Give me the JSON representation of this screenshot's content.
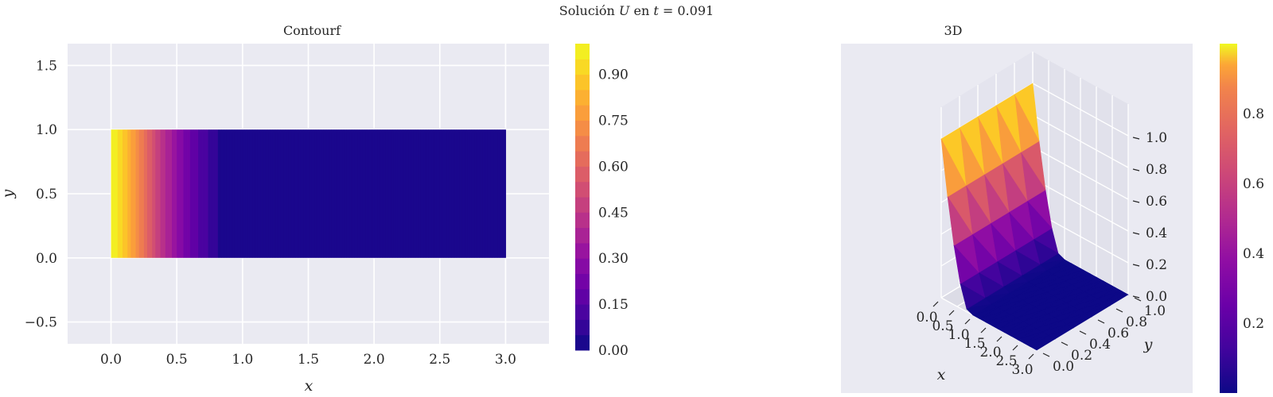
{
  "figure": {
    "suptitle": "Solución U en t =  0.091",
    "suptitle_parts": {
      "prefix": "Solución ",
      "var": "U",
      "mid": " en ",
      "tvar": "t",
      "eq": " =  0.091"
    }
  },
  "chart_data": [
    {
      "type": "heatmap",
      "subtype": "contourf",
      "title": "Contourf",
      "xlabel": "x",
      "ylabel": "y",
      "xlim": [
        -0.33,
        3.33
      ],
      "ylim": [
        -0.67,
        1.67
      ],
      "xticks": [
        0.0,
        0.5,
        1.0,
        1.5,
        2.0,
        2.5,
        3.0
      ],
      "xtick_labels": [
        "0.0",
        "0.5",
        "1.0",
        "1.5",
        "2.0",
        "2.5",
        "3.0"
      ],
      "yticks": [
        -0.5,
        0.0,
        0.5,
        1.0,
        1.5
      ],
      "ytick_labels": [
        "−0.5",
        "0.0",
        "0.5",
        "1.0",
        "1.5"
      ],
      "domain": {
        "x": [
          0.0,
          3.0
        ],
        "y": [
          0.0,
          1.0
        ]
      },
      "colormap": "plasma",
      "grid": true,
      "field_profile": {
        "x": [
          0.0,
          0.05,
          0.1,
          0.15,
          0.2,
          0.25,
          0.3,
          0.35,
          0.4,
          0.45,
          0.5,
          0.55,
          0.6,
          0.65,
          0.7,
          0.75,
          0.8,
          0.85,
          0.87,
          3.0
        ],
        "u": [
          1.0,
          0.95,
          0.88,
          0.8,
          0.72,
          0.64,
          0.56,
          0.49,
          0.42,
          0.36,
          0.3,
          0.25,
          0.2,
          0.16,
          0.12,
          0.09,
          0.06,
          0.03,
          0.0,
          0.0
        ]
      },
      "colorbar": {
        "levels": [
          0.0,
          0.05,
          0.1,
          0.15,
          0.2,
          0.25,
          0.3,
          0.35,
          0.4,
          0.45,
          0.5,
          0.55,
          0.6,
          0.65,
          0.7,
          0.75,
          0.8,
          0.85,
          0.9,
          0.95,
          1.0
        ],
        "ticks": [
          0.0,
          0.15,
          0.3,
          0.45,
          0.6,
          0.75,
          0.9
        ],
        "tick_labels": [
          "0.00",
          "0.15",
          "0.30",
          "0.45",
          "0.60",
          "0.75",
          "0.90"
        ]
      }
    },
    {
      "type": "surface",
      "title": "3D",
      "xlabel": "x",
      "ylabel": "y",
      "xticks": [
        "0.0",
        "0.5",
        "1.0",
        "1.5",
        "2.0",
        "2.5",
        "3.0"
      ],
      "yticks": [
        "0.0",
        "0.2",
        "0.4",
        "0.6",
        "0.8",
        "1.0"
      ],
      "zticks": [
        "0.0",
        "0.2",
        "0.4",
        "0.6",
        "0.8",
        "1.0"
      ],
      "xlim": [
        0.0,
        3.0
      ],
      "ylim": [
        0.0,
        1.0
      ],
      "zlim": [
        0.0,
        1.0
      ],
      "colormap": "plasma",
      "grid": true,
      "mesh": {
        "nx": 15,
        "ny": 6
      },
      "colorbar": {
        "range": [
          0.0,
          1.0
        ],
        "ticks": [
          0.2,
          0.4,
          0.6,
          0.8
        ],
        "tick_labels": [
          "0.2",
          "0.4",
          "0.6",
          "0.8"
        ]
      }
    }
  ]
}
